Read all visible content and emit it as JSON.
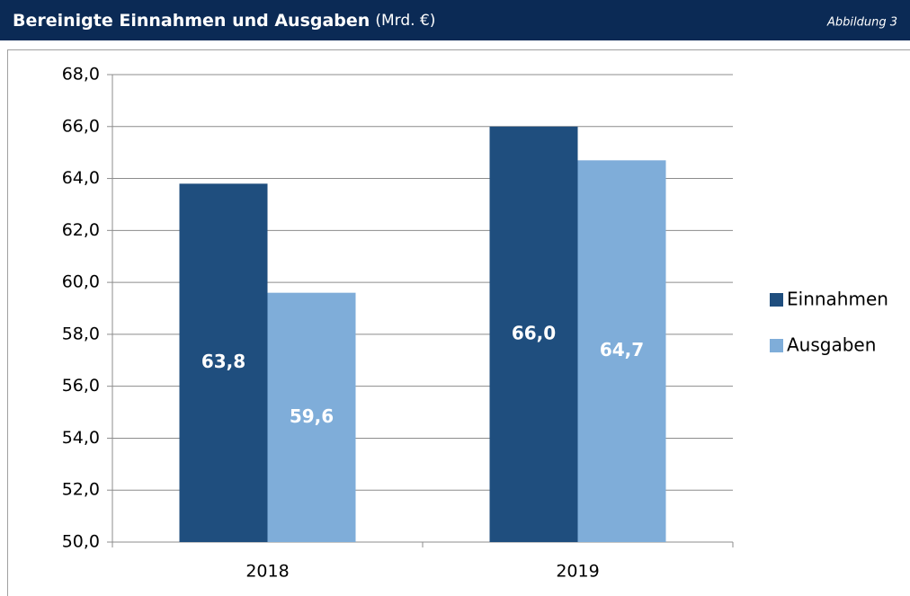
{
  "chart_data": {
    "type": "bar",
    "title": "Bereinigte Einnahmen und Ausgaben",
    "subtitle": "(Mrd. €)",
    "annotation": "Abbildung 3",
    "categories": [
      "2018",
      "2019"
    ],
    "series": [
      {
        "name": "Einnahmen",
        "color": "#1f4e7e",
        "values": [
          63.8,
          66.0
        ],
        "value_labels": [
          "63,8",
          "66,0"
        ]
      },
      {
        "name": "Ausgaben",
        "color": "#7fadd9",
        "values": [
          59.6,
          64.7
        ],
        "value_labels": [
          "59,6",
          "64,7"
        ]
      }
    ],
    "ylim": [
      50,
      68
    ],
    "yticks": [
      {
        "value": 50,
        "label": "50,0"
      },
      {
        "value": 52,
        "label": "52,0"
      },
      {
        "value": 54,
        "label": "54,0"
      },
      {
        "value": 56,
        "label": "56,0"
      },
      {
        "value": 58,
        "label": "58,0"
      },
      {
        "value": 60,
        "label": "60,0"
      },
      {
        "value": 62,
        "label": "62,0"
      },
      {
        "value": 64,
        "label": "64,0"
      },
      {
        "value": 66,
        "label": "66,0"
      },
      {
        "value": 68,
        "label": "68,0"
      }
    ],
    "grid": true,
    "legend": "right"
  }
}
